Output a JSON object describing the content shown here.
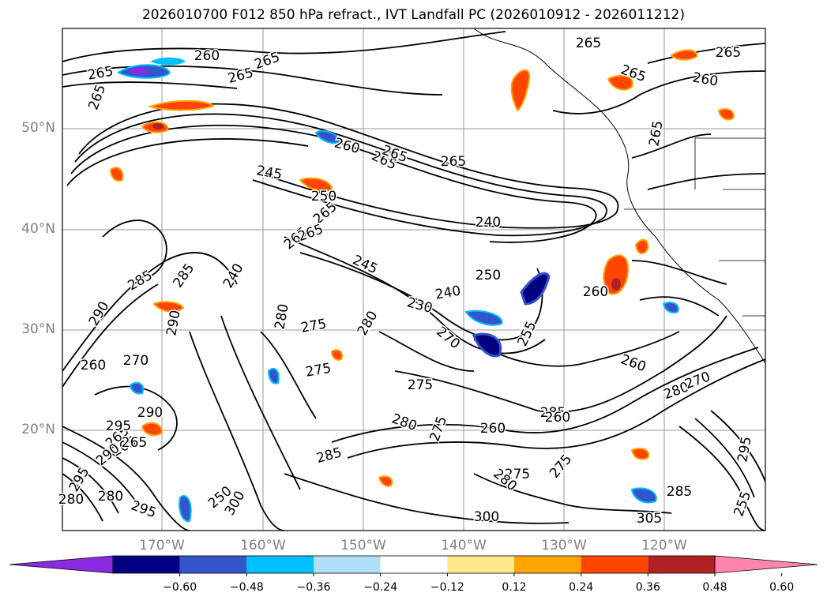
{
  "title": "2026010700 F012 850 hPa refract., IVT Landfall PC (2026010912 - 2026011212)",
  "axes": {
    "lat_labels": [
      "50°N",
      "40°N",
      "30°N",
      "20°N"
    ],
    "lon_labels": [
      "170°W",
      "160°W",
      "150°W",
      "140°W",
      "130°W",
      "120°W"
    ]
  },
  "contour_labels": [
    "260",
    "265",
    "265",
    "265",
    "265",
    "265",
    "265",
    "260",
    "265",
    "265",
    "260",
    "265",
    "265",
    "265",
    "245",
    "250",
    "265",
    "240",
    "265",
    "265",
    "245",
    "250",
    "240",
    "230",
    "260",
    "255",
    "260",
    "285",
    "290",
    "285",
    "290",
    "260",
    "270",
    "275",
    "280",
    "275",
    "275",
    "270",
    "280",
    "275",
    "260",
    "285",
    "280",
    "270",
    "280",
    "265",
    "265",
    "260",
    "275",
    "285",
    "280",
    "275",
    "285",
    "300",
    "295",
    "300",
    "280",
    "295",
    "290",
    "280",
    "305",
    "295",
    "265",
    "250",
    "290",
    "295",
    "255",
    "240"
  ],
  "colorbar": {
    "colors": [
      "#8a2be2",
      "#000080",
      "#3355cc",
      "#00bfff",
      "#b0e0f8",
      "#ffffff",
      "#ffe98a",
      "#ffa500",
      "#ff4500",
      "#b22222",
      "#ff85b0"
    ],
    "ticks": [
      "−0.60",
      "−0.48",
      "−0.36",
      "−0.24",
      "−0.12",
      "0.12",
      "0.24",
      "0.36",
      "0.48",
      "0.60"
    ]
  }
}
